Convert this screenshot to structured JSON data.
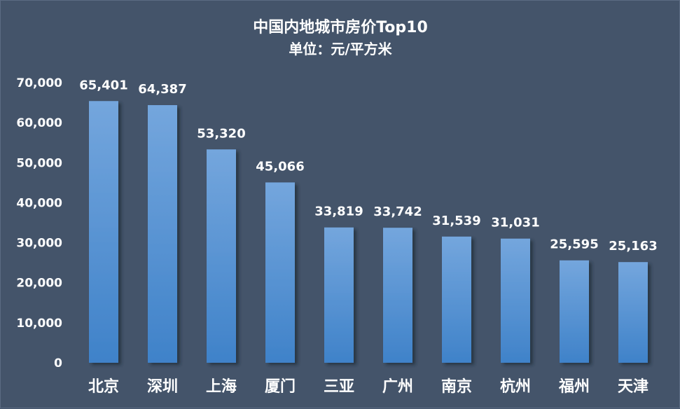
{
  "chart_data": {
    "type": "bar",
    "title": "中国内地城市房价Top10",
    "subtitle": "单位：元/平方米",
    "categories": [
      "北京",
      "深圳",
      "上海",
      "厦门",
      "三亚",
      "广州",
      "南京",
      "杭州",
      "福州",
      "天津"
    ],
    "values": [
      65401,
      64387,
      53320,
      45066,
      33819,
      33742,
      31539,
      31031,
      25595,
      25163
    ],
    "value_labels": [
      "65,401",
      "64,387",
      "53,320",
      "45,066",
      "33,819",
      "33,742",
      "31,539",
      "31,031",
      "25,595",
      "25,163"
    ],
    "yticks": [
      "0",
      "10,000",
      "20,000",
      "30,000",
      "40,000",
      "50,000",
      "60,000",
      "70,000"
    ],
    "ylim": [
      0,
      70000
    ],
    "ytick_step": 10000,
    "xlabel": "",
    "ylabel": "",
    "grid": false,
    "legend": "none",
    "colors": {
      "background": "#44546a",
      "bar_top": "#74a6dd",
      "bar_bottom": "#3f82c9",
      "text": "#ffffff"
    }
  }
}
